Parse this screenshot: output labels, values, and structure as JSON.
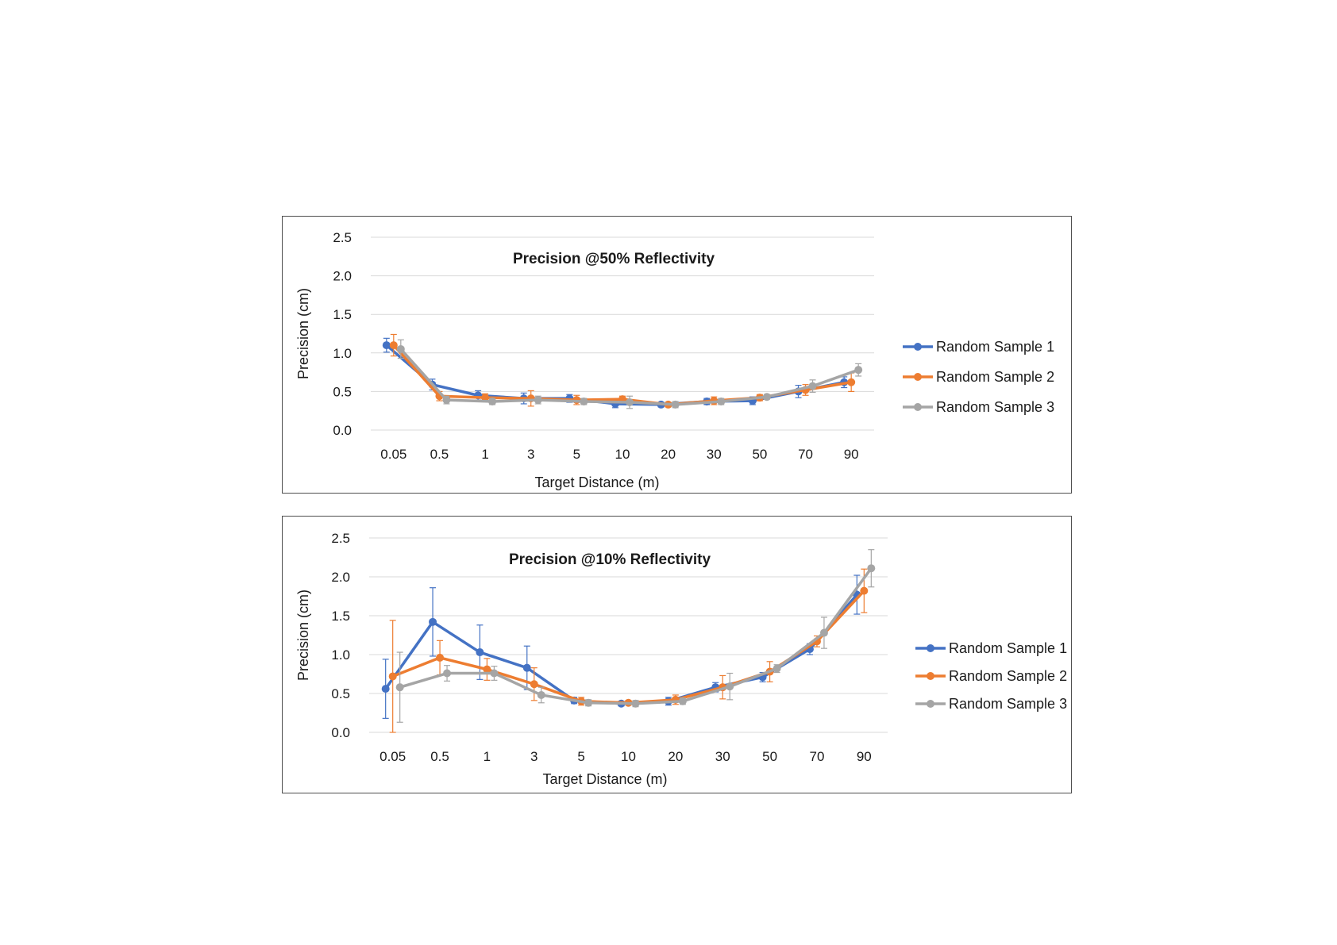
{
  "colors": {
    "random_sample_1": "#4472c4",
    "random_sample_2": "#ed7d31",
    "random_sample_3": "#a5a5a5",
    "gridline": "#d9d9d9",
    "frame": "#4d4d4d"
  },
  "chart_data": [
    {
      "type": "line",
      "title": "Precision @50% Reflectivity",
      "xlabel": "Target Distance (m)",
      "ylabel": "Precision (cm)",
      "categories": [
        "0.05",
        "0.5",
        "1",
        "3",
        "5",
        "10",
        "20",
        "30",
        "50",
        "70",
        "90"
      ],
      "ylim": [
        0,
        2.5
      ],
      "yticks": [
        "0.0",
        "0.5",
        "1.0",
        "1.5",
        "2.0",
        "2.5"
      ],
      "grid": true,
      "legend": "right",
      "series": [
        {
          "name": "Random Sample 1",
          "values": [
            1.1,
            0.59,
            0.45,
            0.41,
            0.41,
            0.34,
            0.33,
            0.37,
            0.38,
            0.5,
            0.62
          ],
          "errors": [
            0.09,
            0.07,
            0.06,
            0.07,
            0.05,
            0.05,
            0.03,
            0.04,
            0.05,
            0.08,
            0.07
          ]
        },
        {
          "name": "Random Sample 2",
          "values": [
            1.1,
            0.44,
            0.42,
            0.41,
            0.39,
            0.4,
            0.33,
            0.38,
            0.42,
            0.52,
            0.62
          ],
          "errors": [
            0.14,
            0.06,
            0.05,
            0.1,
            0.06,
            0.04,
            0.03,
            0.05,
            0.04,
            0.07,
            0.12
          ]
        },
        {
          "name": "Random Sample 3",
          "values": [
            1.05,
            0.39,
            0.37,
            0.39,
            0.37,
            0.36,
            0.33,
            0.37,
            0.43,
            0.57,
            0.78
          ],
          "errors": [
            0.12,
            0.05,
            0.04,
            0.05,
            0.04,
            0.08,
            0.04,
            0.04,
            0.03,
            0.08,
            0.08
          ]
        }
      ]
    },
    {
      "type": "line",
      "title": "Precision @10% Reflectivity",
      "xlabel": "Target Distance (m)",
      "ylabel": "Precision (cm)",
      "categories": [
        "0.05",
        "0.5",
        "1",
        "3",
        "5",
        "10",
        "20",
        "30",
        "50",
        "70",
        "90"
      ],
      "ylim": [
        0,
        2.5
      ],
      "yticks": [
        "0.0",
        "0.5",
        "1.0",
        "1.5",
        "2.0",
        "2.5"
      ],
      "grid": true,
      "legend": "right",
      "series": [
        {
          "name": "Random Sample 1",
          "values": [
            0.56,
            1.42,
            1.03,
            0.83,
            0.41,
            0.37,
            0.4,
            0.58,
            0.71,
            1.07,
            1.77
          ],
          "errors": [
            0.38,
            0.44,
            0.35,
            0.28,
            0.04,
            0.03,
            0.05,
            0.06,
            0.06,
            0.07,
            0.25
          ]
        },
        {
          "name": "Random Sample 2",
          "values": [
            0.72,
            0.96,
            0.81,
            0.62,
            0.4,
            0.38,
            0.42,
            0.58,
            0.78,
            1.17,
            1.82
          ],
          "errors": [
            0.72,
            0.22,
            0.14,
            0.21,
            0.05,
            0.03,
            0.06,
            0.15,
            0.13,
            0.07,
            0.28
          ]
        },
        {
          "name": "Random Sample 3",
          "values": [
            0.58,
            0.76,
            0.76,
            0.48,
            0.38,
            0.37,
            0.4,
            0.59,
            0.82,
            1.28,
            2.11
          ],
          "errors": [
            0.45,
            0.1,
            0.09,
            0.1,
            0.04,
            0.04,
            0.04,
            0.17,
            0.05,
            0.2,
            0.24
          ]
        }
      ]
    }
  ]
}
